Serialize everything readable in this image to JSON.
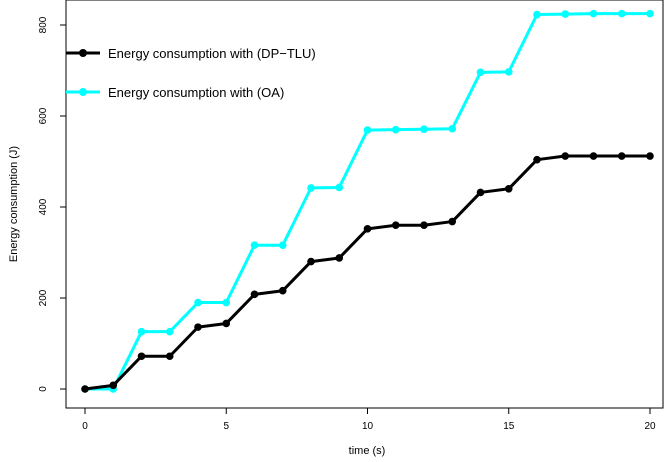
{
  "chart_data": {
    "type": "line",
    "title": "",
    "xlabel": "time (s)",
    "ylabel": "Energy consumption (J)",
    "x": [
      0,
      1,
      2,
      3,
      4,
      5,
      6,
      7,
      8,
      9,
      10,
      11,
      12,
      13,
      14,
      15,
      16,
      17,
      18,
      19,
      20
    ],
    "xlim": [
      0,
      20
    ],
    "ylim": [
      0,
      820
    ],
    "x_ticks": [
      0,
      5,
      10,
      15,
      20
    ],
    "y_ticks": [
      0,
      200,
      400,
      600,
      800
    ],
    "grid": false,
    "legend_position": "top-left",
    "series": [
      {
        "name": "Energy consumption with (DP−TLU)",
        "color": "#000000",
        "values": [
          0,
          8,
          72,
          72,
          136,
          144,
          208,
          216,
          280,
          288,
          352,
          360,
          360,
          368,
          432,
          440,
          504,
          512,
          512,
          512,
          512
        ]
      },
      {
        "name": "Energy consumption with (OA)",
        "color": "#00ffff",
        "values": [
          0,
          0,
          126,
          126,
          190,
          190,
          316,
          316,
          442,
          443,
          569,
          570,
          571,
          572,
          696,
          697,
          823,
          824,
          825,
          825,
          825
        ]
      }
    ]
  }
}
